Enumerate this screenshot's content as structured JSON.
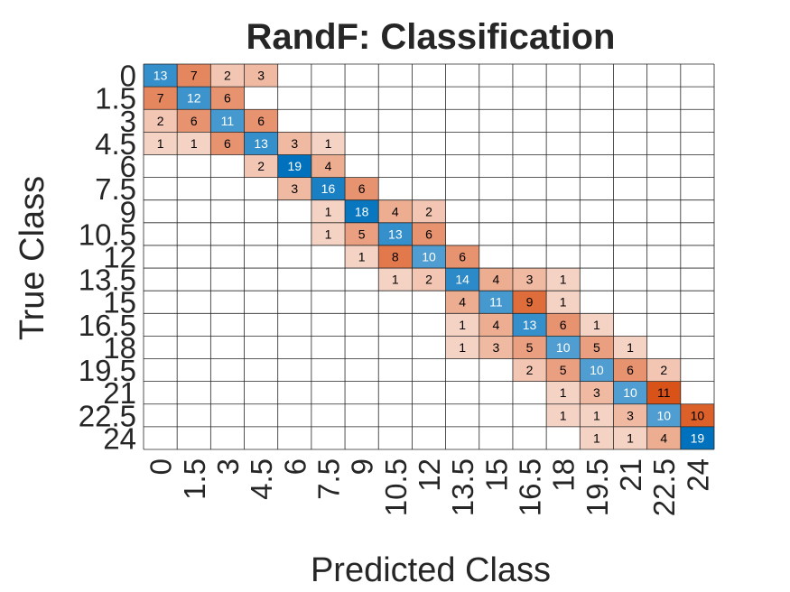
{
  "chart_data": {
    "type": "heatmap",
    "title": "RandF: Classification",
    "xlabel": "Predicted Class",
    "ylabel": "True Class",
    "classes": [
      "0",
      "1.5",
      "3",
      "4.5",
      "6",
      "7.5",
      "9",
      "10.5",
      "12",
      "13.5",
      "15",
      "16.5",
      "18",
      "19.5",
      "21",
      "22.5",
      "24"
    ],
    "diagonal_color": "#0072BD",
    "offdiagonal_color": "#D95319",
    "grid": true,
    "cells": [
      {
        "row": 0,
        "col": 0,
        "value": 13
      },
      {
        "row": 0,
        "col": 1,
        "value": 7
      },
      {
        "row": 0,
        "col": 2,
        "value": 2
      },
      {
        "row": 0,
        "col": 3,
        "value": 3
      },
      {
        "row": 1,
        "col": 0,
        "value": 7
      },
      {
        "row": 1,
        "col": 1,
        "value": 12
      },
      {
        "row": 1,
        "col": 2,
        "value": 6
      },
      {
        "row": 2,
        "col": 0,
        "value": 2
      },
      {
        "row": 2,
        "col": 1,
        "value": 6
      },
      {
        "row": 2,
        "col": 2,
        "value": 11
      },
      {
        "row": 2,
        "col": 3,
        "value": 6
      },
      {
        "row": 3,
        "col": 0,
        "value": 1
      },
      {
        "row": 3,
        "col": 1,
        "value": 1
      },
      {
        "row": 3,
        "col": 2,
        "value": 6
      },
      {
        "row": 3,
        "col": 3,
        "value": 13
      },
      {
        "row": 3,
        "col": 4,
        "value": 3
      },
      {
        "row": 3,
        "col": 5,
        "value": 1
      },
      {
        "row": 4,
        "col": 3,
        "value": 2
      },
      {
        "row": 4,
        "col": 4,
        "value": 19
      },
      {
        "row": 4,
        "col": 5,
        "value": 4
      },
      {
        "row": 5,
        "col": 4,
        "value": 3
      },
      {
        "row": 5,
        "col": 5,
        "value": 16
      },
      {
        "row": 5,
        "col": 6,
        "value": 6
      },
      {
        "row": 6,
        "col": 5,
        "value": 1
      },
      {
        "row": 6,
        "col": 6,
        "value": 18
      },
      {
        "row": 6,
        "col": 7,
        "value": 4
      },
      {
        "row": 6,
        "col": 8,
        "value": 2
      },
      {
        "row": 7,
        "col": 5,
        "value": 1
      },
      {
        "row": 7,
        "col": 6,
        "value": 5
      },
      {
        "row": 7,
        "col": 7,
        "value": 13
      },
      {
        "row": 7,
        "col": 8,
        "value": 6
      },
      {
        "row": 8,
        "col": 6,
        "value": 1
      },
      {
        "row": 8,
        "col": 7,
        "value": 8
      },
      {
        "row": 8,
        "col": 8,
        "value": 10
      },
      {
        "row": 8,
        "col": 9,
        "value": 6
      },
      {
        "row": 9,
        "col": 7,
        "value": 1
      },
      {
        "row": 9,
        "col": 8,
        "value": 2
      },
      {
        "row": 9,
        "col": 9,
        "value": 14
      },
      {
        "row": 9,
        "col": 10,
        "value": 4
      },
      {
        "row": 9,
        "col": 11,
        "value": 3
      },
      {
        "row": 9,
        "col": 12,
        "value": 1
      },
      {
        "row": 10,
        "col": 9,
        "value": 4
      },
      {
        "row": 10,
        "col": 10,
        "value": 11
      },
      {
        "row": 10,
        "col": 11,
        "value": 9
      },
      {
        "row": 10,
        "col": 12,
        "value": 1
      },
      {
        "row": 11,
        "col": 9,
        "value": 1
      },
      {
        "row": 11,
        "col": 10,
        "value": 4
      },
      {
        "row": 11,
        "col": 11,
        "value": 13
      },
      {
        "row": 11,
        "col": 12,
        "value": 6
      },
      {
        "row": 11,
        "col": 13,
        "value": 1
      },
      {
        "row": 12,
        "col": 9,
        "value": 1
      },
      {
        "row": 12,
        "col": 10,
        "value": 3
      },
      {
        "row": 12,
        "col": 11,
        "value": 5
      },
      {
        "row": 12,
        "col": 12,
        "value": 10
      },
      {
        "row": 12,
        "col": 13,
        "value": 5
      },
      {
        "row": 12,
        "col": 14,
        "value": 1
      },
      {
        "row": 13,
        "col": 11,
        "value": 2
      },
      {
        "row": 13,
        "col": 12,
        "value": 5
      },
      {
        "row": 13,
        "col": 13,
        "value": 10
      },
      {
        "row": 13,
        "col": 14,
        "value": 6
      },
      {
        "row": 13,
        "col": 15,
        "value": 2
      },
      {
        "row": 14,
        "col": 12,
        "value": 1
      },
      {
        "row": 14,
        "col": 13,
        "value": 3
      },
      {
        "row": 14,
        "col": 14,
        "value": 10
      },
      {
        "row": 14,
        "col": 15,
        "value": 11
      },
      {
        "row": 15,
        "col": 12,
        "value": 1
      },
      {
        "row": 15,
        "col": 13,
        "value": 1
      },
      {
        "row": 15,
        "col": 14,
        "value": 3
      },
      {
        "row": 15,
        "col": 15,
        "value": 10
      },
      {
        "row": 15,
        "col": 16,
        "value": 10
      },
      {
        "row": 16,
        "col": 13,
        "value": 1
      },
      {
        "row": 16,
        "col": 14,
        "value": 1
      },
      {
        "row": 16,
        "col": 15,
        "value": 4
      },
      {
        "row": 16,
        "col": 16,
        "value": 19
      }
    ]
  }
}
